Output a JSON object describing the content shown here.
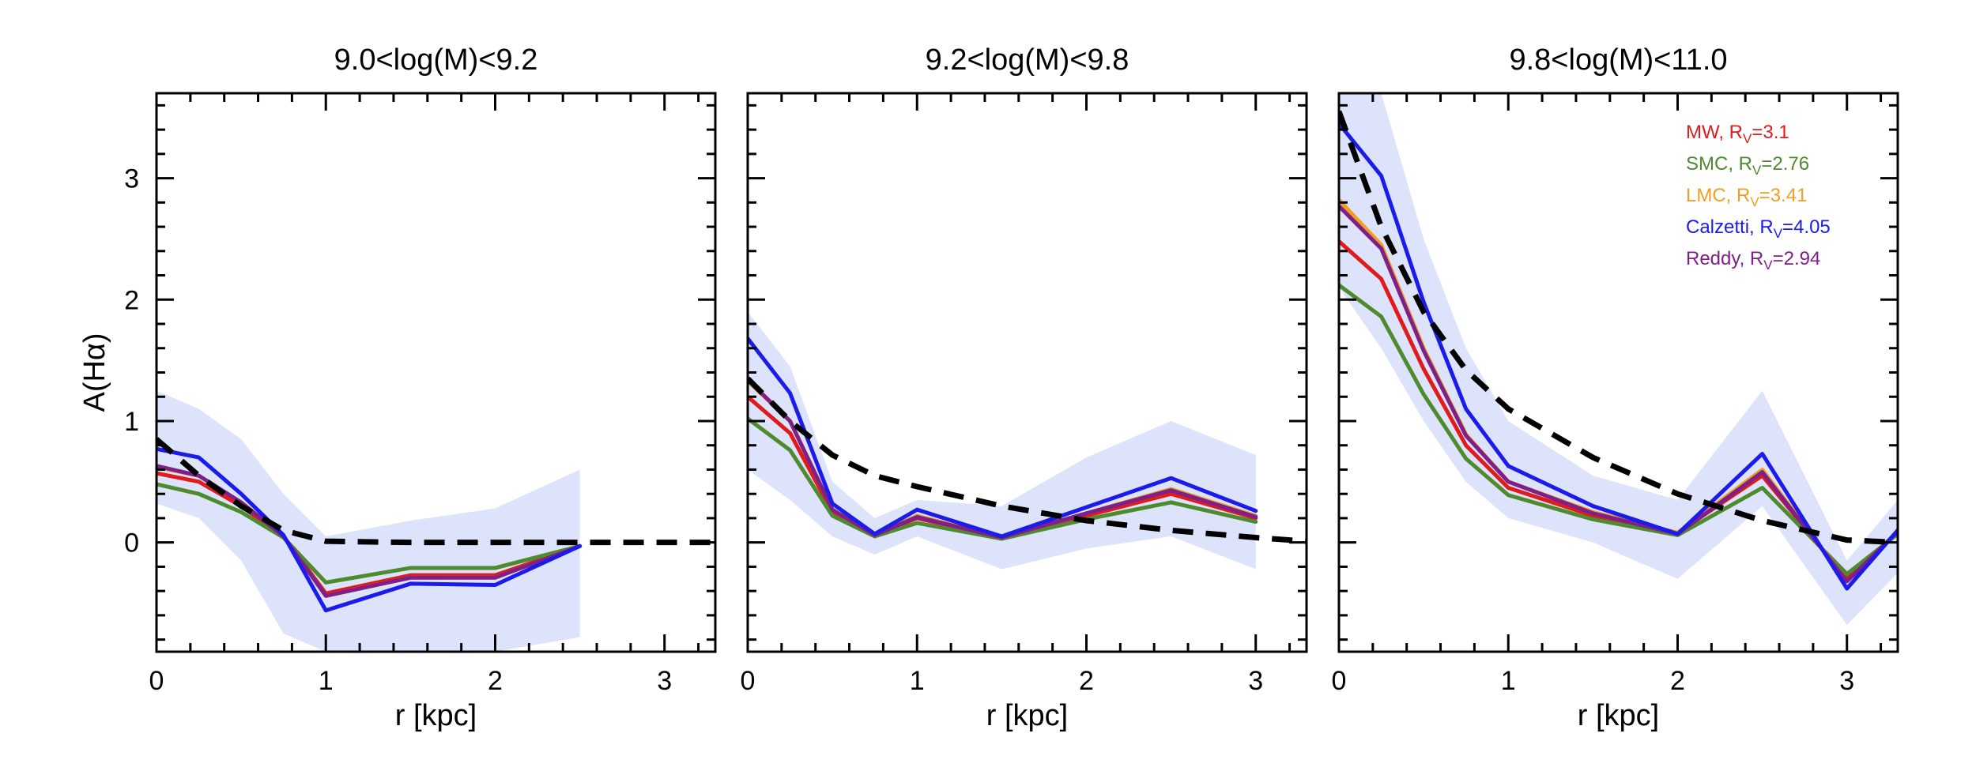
{
  "chart_data": [
    {
      "type": "line",
      "title": "9.0<log(M)<9.2",
      "xlabel": "r [kpc]",
      "ylabel": "A(Hα)",
      "xlim": [
        0,
        3.3
      ],
      "ylim": [
        -0.9,
        3.7
      ],
      "xticks": [
        0,
        1,
        2,
        3
      ],
      "yticks": [
        0,
        1,
        2,
        3
      ],
      "x": [
        0,
        0.25,
        0.5,
        0.75,
        1.0,
        1.5,
        2.0,
        2.5
      ],
      "band": {
        "upper": [
          1.25,
          1.1,
          0.85,
          0.4,
          0.05,
          0.18,
          0.28,
          0.6
        ],
        "lower": [
          0.32,
          0.2,
          -0.15,
          -0.75,
          -0.9,
          -0.9,
          -0.9,
          -0.78
        ]
      },
      "series": [
        {
          "name": "MW, R_V=3.1",
          "values": [
            0.57,
            0.5,
            0.3,
            0.05,
            -0.42,
            -0.27,
            -0.27,
            -0.03
          ]
        },
        {
          "name": "SMC, R_V=2.76",
          "values": [
            0.48,
            0.4,
            0.25,
            0.04,
            -0.33,
            -0.21,
            -0.21,
            -0.03
          ]
        },
        {
          "name": "LMC, R_V=3.41",
          "values": [
            0.62,
            0.55,
            0.33,
            0.05,
            -0.44,
            -0.29,
            -0.29,
            -0.03
          ]
        },
        {
          "name": "Calzetti, R_V=4.05",
          "values": [
            0.77,
            0.7,
            0.4,
            0.06,
            -0.56,
            -0.34,
            -0.35,
            -0.03
          ]
        },
        {
          "name": "Reddy, R_V=2.94",
          "values": [
            0.63,
            0.55,
            0.33,
            0.05,
            -0.44,
            -0.29,
            -0.29,
            -0.03
          ]
        }
      ],
      "dashed": {
        "x": [
          0,
          0.25,
          0.5,
          0.75,
          1.0,
          1.5,
          2.0,
          2.5,
          3.0,
          3.3
        ],
        "values": [
          0.85,
          0.55,
          0.3,
          0.1,
          0.01,
          0,
          0,
          0,
          0,
          0
        ]
      }
    },
    {
      "type": "line",
      "title": "9.2<log(M)<9.8",
      "xlabel": "r [kpc]",
      "xlim": [
        0,
        3.3
      ],
      "ylim": [
        -0.9,
        3.7
      ],
      "xticks": [
        0,
        1,
        2,
        3
      ],
      "x": [
        0,
        0.25,
        0.5,
        0.75,
        1.0,
        1.5,
        2.0,
        2.5,
        3.0
      ],
      "band": {
        "upper": [
          1.9,
          1.45,
          0.5,
          0.2,
          0.35,
          0.3,
          0.7,
          1.0,
          0.72
        ],
        "lower": [
          0.6,
          0.35,
          0.05,
          -0.1,
          0.05,
          -0.22,
          -0.05,
          0.05,
          -0.22
        ]
      },
      "series": [
        {
          "name": "MW, R_V=3.1",
          "values": [
            1.2,
            0.9,
            0.25,
            0.06,
            0.2,
            0.04,
            0.22,
            0.4,
            0.2
          ]
        },
        {
          "name": "SMC, R_V=2.76",
          "values": [
            1.02,
            0.76,
            0.22,
            0.05,
            0.16,
            0.03,
            0.19,
            0.33,
            0.17
          ]
        },
        {
          "name": "LMC, R_V=3.41",
          "values": [
            1.33,
            1.0,
            0.27,
            0.06,
            0.22,
            0.04,
            0.24,
            0.44,
            0.22
          ]
        },
        {
          "name": "Calzetti, R_V=4.05",
          "values": [
            1.68,
            1.23,
            0.32,
            0.07,
            0.27,
            0.05,
            0.29,
            0.53,
            0.26
          ]
        },
        {
          "name": "Reddy, R_V=2.94",
          "values": [
            1.34,
            1.0,
            0.27,
            0.06,
            0.21,
            0.04,
            0.24,
            0.43,
            0.21
          ]
        }
      ],
      "dashed": {
        "x": [
          0,
          0.25,
          0.5,
          0.75,
          1.0,
          1.5,
          2.0,
          2.5,
          3.0,
          3.3
        ],
        "values": [
          1.35,
          1.0,
          0.72,
          0.55,
          0.46,
          0.3,
          0.18,
          0.1,
          0.04,
          0.01
        ]
      }
    },
    {
      "type": "line",
      "title": "9.8<log(M)<11.0",
      "xlabel": "r [kpc]",
      "xlim": [
        0,
        3.3
      ],
      "ylim": [
        -0.9,
        3.7
      ],
      "xticks": [
        0,
        1,
        2,
        3
      ],
      "x": [
        0,
        0.25,
        0.5,
        0.75,
        1.0,
        1.5,
        2.0,
        2.5,
        3.0,
        3.3
      ],
      "band": {
        "upper": [
          3.75,
          3.7,
          2.5,
          1.6,
          1.0,
          0.55,
          0.35,
          1.25,
          -0.15,
          0.35
        ],
        "lower": [
          2.1,
          1.6,
          1.0,
          0.5,
          0.2,
          0.0,
          -0.3,
          0.3,
          -0.68,
          -0.25
        ]
      },
      "series": [
        {
          "name": "MW, R_V=3.1",
          "values": [
            2.48,
            2.17,
            1.43,
            0.8,
            0.45,
            0.22,
            0.08,
            0.55,
            -0.3,
            0.08
          ]
        },
        {
          "name": "SMC, R_V=2.76",
          "values": [
            2.12,
            1.86,
            1.22,
            0.69,
            0.39,
            0.19,
            0.06,
            0.45,
            -0.26,
            0.07
          ]
        },
        {
          "name": "LMC, R_V=3.41",
          "values": [
            2.82,
            2.45,
            1.6,
            0.89,
            0.5,
            0.25,
            0.08,
            0.6,
            -0.32,
            0.09
          ]
        },
        {
          "name": "Calzetti, R_V=4.05",
          "values": [
            3.45,
            3.02,
            1.98,
            1.1,
            0.63,
            0.3,
            0.07,
            0.73,
            -0.38,
            0.1
          ]
        },
        {
          "name": "Reddy, R_V=2.94",
          "values": [
            2.77,
            2.42,
            1.58,
            0.88,
            0.5,
            0.24,
            0.07,
            0.58,
            -0.32,
            0.09
          ]
        }
      ],
      "dashed": {
        "x": [
          0,
          0.25,
          0.5,
          0.75,
          1.0,
          1.5,
          2.0,
          2.5,
          3.0,
          3.3
        ],
        "values": [
          3.55,
          2.6,
          1.9,
          1.42,
          1.1,
          0.7,
          0.4,
          0.18,
          0.02,
          0.0
        ]
      }
    }
  ],
  "legend": {
    "items": [
      {
        "label": "MW, R",
        "sub": "V",
        "rest": "=3.1",
        "color": "#e01b1b"
      },
      {
        "label": "SMC, R",
        "sub": "V",
        "rest": "=2.76",
        "color": "#4e8a2e"
      },
      {
        "label": "LMC, R",
        "sub": "V",
        "rest": "=3.41",
        "color": "#f0a020"
      },
      {
        "label": "Calzetti, R",
        "sub": "V",
        "rest": "=4.05",
        "color": "#1b1bea"
      },
      {
        "label": "Reddy, R",
        "sub": "V",
        "rest": "=2.94",
        "color": "#7e1f8a"
      }
    ]
  },
  "colors": {
    "band": "#dde3fa",
    "dashed": "#000000",
    "series": [
      "#e01b1b",
      "#4e8a2e",
      "#f0a020",
      "#1b1bea",
      "#7e1f8a"
    ]
  }
}
